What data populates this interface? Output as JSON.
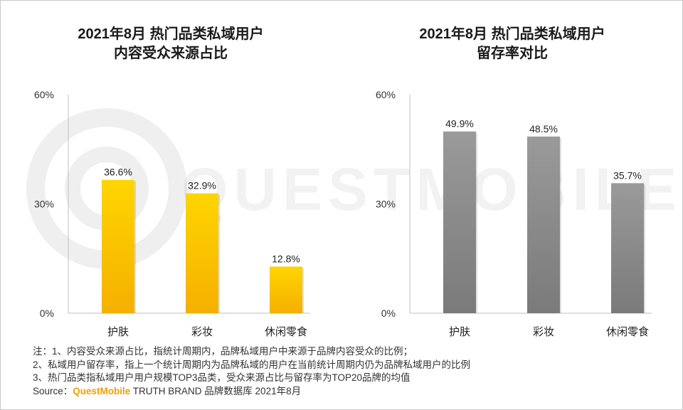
{
  "watermark": "QUESTMOBILE",
  "colors": {
    "yellow_top": "#ffd500",
    "yellow_bottom": "#f5b000",
    "gray_top": "#9a9a9a",
    "gray_bottom": "#7a7a7a",
    "brand": "#f0a000"
  },
  "chart_data": [
    {
      "type": "bar",
      "title_lines": [
        "2021年8月 热门品类私域用户",
        "内容受众来源占比"
      ],
      "categories": [
        "护肤",
        "彩妆",
        "休闲零食"
      ],
      "values": [
        36.6,
        32.9,
        12.8
      ],
      "value_labels": [
        "36.6%",
        "32.9%",
        "12.8%"
      ],
      "ylim": [
        0,
        60
      ],
      "yticks": [
        0,
        30,
        60
      ],
      "ytick_labels": [
        "0%",
        "30%",
        "60%"
      ],
      "color_key": "yellow",
      "xlabel": "",
      "ylabel": ""
    },
    {
      "type": "bar",
      "title_lines": [
        "2021年8月 热门品类私域用户",
        "留存率对比"
      ],
      "categories": [
        "护肤",
        "彩妆",
        "休闲零食"
      ],
      "values": [
        49.9,
        48.5,
        35.7
      ],
      "value_labels": [
        "49.9%",
        "48.5%",
        "35.7%"
      ],
      "ylim": [
        0,
        60
      ],
      "yticks": [
        0,
        30,
        60
      ],
      "ytick_labels": [
        "0%",
        "30%",
        "60%"
      ],
      "color_key": "gray",
      "xlabel": "",
      "ylabel": ""
    }
  ],
  "notes": {
    "line1": "注：1、内容受众来源占比，指统计周期内，品牌私域用户中来源于品牌内容受众的比例；",
    "line2": "2、私域用户留存率，指上一个统计周期内为品牌私域的用户在当前统计周期内仍为品牌私域用户的比例",
    "line3": "3、热门品类指私域用户用户规模TOP3品类，受众来源占比与留存率为TOP20品牌的均值",
    "source_prefix": "Source：",
    "source_brand": "QuestMobile",
    "source_rest": " TRUTH BRAND 品牌数据库 2021年8月"
  }
}
